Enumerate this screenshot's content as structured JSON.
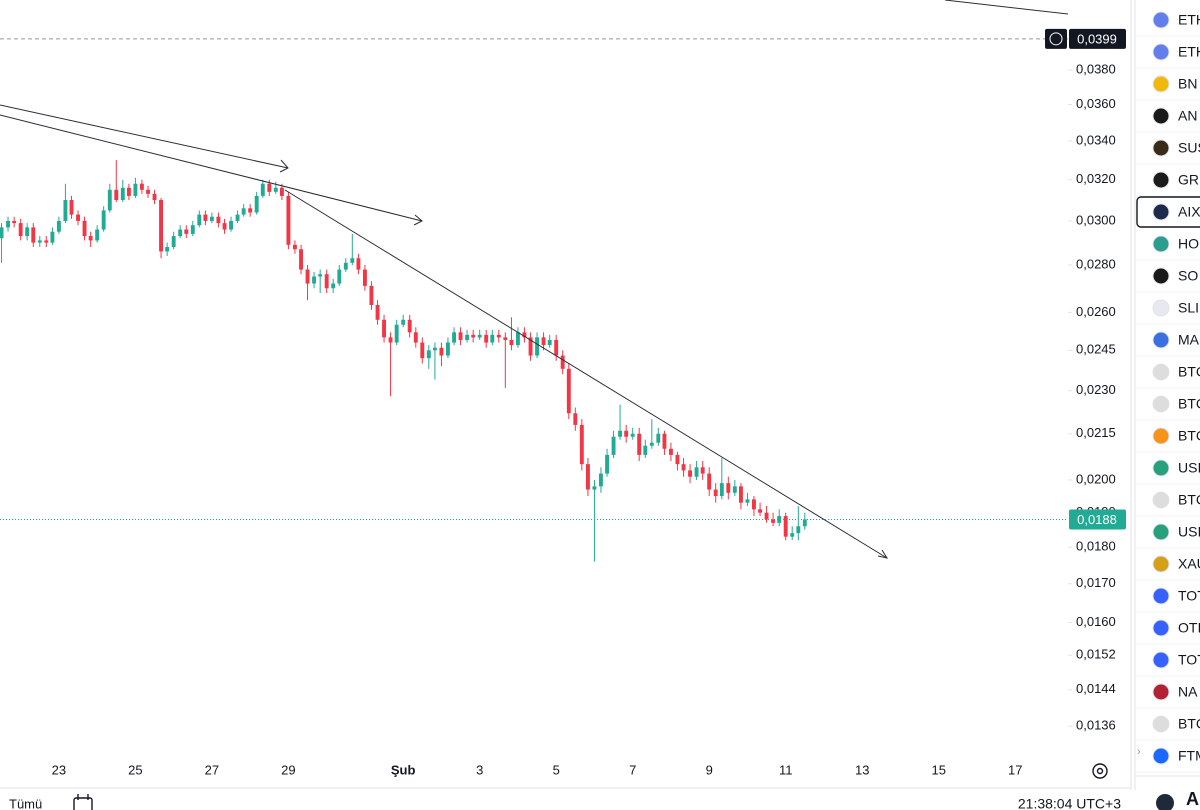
{
  "chart_data": {
    "type": "candlestick",
    "log_scale": true,
    "grid": false,
    "up_color": "#22ab94",
    "down_color": "#f23645",
    "xlim": [
      21.46,
      49.38
    ],
    "xticks": [
      23,
      25,
      27,
      29,
      {
        "value": 32,
        "label": "Şub"
      },
      {
        "value": 34,
        "label": "3"
      },
      {
        "value": 36,
        "label": "5"
      },
      {
        "value": 38,
        "label": "7"
      },
      {
        "value": 40,
        "label": "9"
      },
      {
        "value": 42,
        "label": "11"
      },
      {
        "value": 44,
        "label": "13"
      },
      {
        "value": 46,
        "label": "15"
      },
      {
        "value": 48,
        "label": "17"
      }
    ],
    "ylim": [
      0.0129,
      0.0424
    ],
    "yticks": [
      {
        "value": 0.038,
        "label": "0,0380"
      },
      {
        "value": 0.036,
        "label": "0,0360"
      },
      {
        "value": 0.034,
        "label": "0,0340"
      },
      {
        "value": 0.032,
        "label": "0,0320"
      },
      {
        "value": 0.03,
        "label": "0,0300"
      },
      {
        "value": 0.028,
        "label": "0,0280"
      },
      {
        "value": 0.026,
        "label": "0,0260"
      },
      {
        "value": 0.0245,
        "label": "0,0245"
      },
      {
        "value": 0.023,
        "label": "0,0230"
      },
      {
        "value": 0.0215,
        "label": "0,0215"
      },
      {
        "value": 0.02,
        "label": "0,0200"
      },
      {
        "value": 0.019,
        "label": "0,0190"
      },
      {
        "value": 0.018,
        "label": "0,0180"
      },
      {
        "value": 0.017,
        "label": "0,0170"
      },
      {
        "value": 0.016,
        "label": "0,0160"
      },
      {
        "value": 0.0152,
        "label": "0,0152"
      },
      {
        "value": 0.0144,
        "label": "0,0144"
      },
      {
        "value": 0.0136,
        "label": "0,0136"
      }
    ],
    "alert_line": {
      "value": 0.0399,
      "label": "0,0399"
    },
    "last_price": {
      "value": 0.0188,
      "label": "0,0188"
    },
    "x": [
      21.5,
      21.67,
      21.83,
      22,
      22.17,
      22.33,
      22.5,
      22.67,
      22.83,
      23,
      23.17,
      23.33,
      23.5,
      23.67,
      23.83,
      24,
      24.17,
      24.33,
      24.5,
      24.67,
      24.83,
      25,
      25.17,
      25.33,
      25.5,
      25.67,
      25.83,
      26,
      26.17,
      26.33,
      26.5,
      26.67,
      26.83,
      27,
      27.17,
      27.33,
      27.5,
      27.67,
      27.83,
      28,
      28.17,
      28.33,
      28.5,
      28.67,
      28.83,
      29,
      29.17,
      29.33,
      29.5,
      29.67,
      29.83,
      30,
      30.17,
      30.33,
      30.5,
      30.67,
      30.83,
      31,
      31.17,
      31.33,
      31.5,
      31.67,
      31.83,
      32,
      32.17,
      32.33,
      32.5,
      32.67,
      32.83,
      33,
      33.17,
      33.33,
      33.5,
      33.67,
      33.83,
      34,
      34.17,
      34.33,
      34.5,
      34.67,
      34.83,
      35,
      35.17,
      35.33,
      35.5,
      35.67,
      35.83,
      36,
      36.17,
      36.33,
      36.5,
      36.67,
      36.83,
      37,
      37.17,
      37.33,
      37.5,
      37.67,
      37.83,
      38,
      38.17,
      38.33,
      38.5,
      38.67,
      38.83,
      39,
      39.17,
      39.33,
      39.5,
      39.67,
      39.83,
      40,
      40.17,
      40.33,
      40.5,
      40.67,
      40.83,
      41,
      41.17,
      41.33,
      41.5,
      41.67,
      41.83,
      42,
      42.17,
      42.33,
      42.5
    ],
    "candles": [
      [
        0.0292,
        0.0299,
        0.0281,
        0.0297
      ],
      [
        0.0297,
        0.0302,
        0.0295,
        0.03
      ],
      [
        0.03,
        0.0302,
        0.0297,
        0.0299
      ],
      [
        0.0299,
        0.0301,
        0.0291,
        0.0293
      ],
      [
        0.0293,
        0.0299,
        0.0291,
        0.0297
      ],
      [
        0.0297,
        0.0299,
        0.0288,
        0.029
      ],
      [
        0.029,
        0.0293,
        0.0288,
        0.0291
      ],
      [
        0.0291,
        0.0293,
        0.0288,
        0.029
      ],
      [
        0.029,
        0.0297,
        0.0289,
        0.0295
      ],
      [
        0.0295,
        0.0302,
        0.0294,
        0.03
      ],
      [
        0.03,
        0.0318,
        0.0299,
        0.031
      ],
      [
        0.031,
        0.0312,
        0.0301,
        0.0303
      ],
      [
        0.0303,
        0.0305,
        0.0298,
        0.03
      ],
      [
        0.03,
        0.0302,
        0.0291,
        0.0293
      ],
      [
        0.0293,
        0.0295,
        0.0288,
        0.0291
      ],
      [
        0.0291,
        0.0298,
        0.029,
        0.0296
      ],
      [
        0.0296,
        0.0307,
        0.0295,
        0.0305
      ],
      [
        0.0305,
        0.0318,
        0.0304,
        0.0315
      ],
      [
        0.0315,
        0.033,
        0.0309,
        0.031
      ],
      [
        0.031,
        0.032,
        0.0309,
        0.0316
      ],
      [
        0.0316,
        0.0318,
        0.031,
        0.0312
      ],
      [
        0.0312,
        0.0321,
        0.0311,
        0.0318
      ],
      [
        0.0318,
        0.032,
        0.0313,
        0.0315
      ],
      [
        0.0315,
        0.0317,
        0.0311,
        0.0313
      ],
      [
        0.0313,
        0.0315,
        0.0308,
        0.031
      ],
      [
        0.031,
        0.0311,
        0.0283,
        0.0286
      ],
      [
        0.0286,
        0.029,
        0.0284,
        0.0288
      ],
      [
        0.0288,
        0.0295,
        0.0287,
        0.0293
      ],
      [
        0.0293,
        0.0298,
        0.0292,
        0.0296
      ],
      [
        0.0296,
        0.0298,
        0.0292,
        0.0294
      ],
      [
        0.0294,
        0.03,
        0.0293,
        0.0298
      ],
      [
        0.0298,
        0.0305,
        0.0297,
        0.0303
      ],
      [
        0.0303,
        0.0305,
        0.0298,
        0.03
      ],
      [
        0.03,
        0.0304,
        0.0299,
        0.0302
      ],
      [
        0.0302,
        0.0304,
        0.0297,
        0.0299
      ],
      [
        0.0299,
        0.0301,
        0.0294,
        0.0296
      ],
      [
        0.0296,
        0.0302,
        0.0295,
        0.03
      ],
      [
        0.03,
        0.0305,
        0.0299,
        0.0303
      ],
      [
        0.0303,
        0.0308,
        0.0302,
        0.0306
      ],
      [
        0.0306,
        0.0308,
        0.0302,
        0.0304
      ],
      [
        0.0304,
        0.0314,
        0.0303,
        0.0312
      ],
      [
        0.0312,
        0.032,
        0.0311,
        0.0318
      ],
      [
        0.0318,
        0.032,
        0.0312,
        0.0314
      ],
      [
        0.0314,
        0.0319,
        0.0313,
        0.0316
      ],
      [
        0.0316,
        0.0318,
        0.031,
        0.0312
      ],
      [
        0.0312,
        0.0314,
        0.0287,
        0.0289
      ],
      [
        0.0289,
        0.0291,
        0.0285,
        0.0287
      ],
      [
        0.0287,
        0.0289,
        0.0276,
        0.0278
      ],
      [
        0.0278,
        0.028,
        0.0265,
        0.0272
      ],
      [
        0.0272,
        0.0277,
        0.027,
        0.0275
      ],
      [
        0.0275,
        0.0278,
        0.0268,
        0.0276
      ],
      [
        0.0276,
        0.0278,
        0.0268,
        0.027
      ],
      [
        0.027,
        0.0274,
        0.0268,
        0.0272
      ],
      [
        0.0272,
        0.028,
        0.0271,
        0.0278
      ],
      [
        0.0278,
        0.0283,
        0.0277,
        0.0281
      ],
      [
        0.0281,
        0.0294,
        0.028,
        0.0283
      ],
      [
        0.0283,
        0.0285,
        0.0276,
        0.0278
      ],
      [
        0.0278,
        0.028,
        0.0269,
        0.0271
      ],
      [
        0.0271,
        0.0273,
        0.0261,
        0.0263
      ],
      [
        0.0263,
        0.0265,
        0.0255,
        0.0257
      ],
      [
        0.0257,
        0.0259,
        0.0248,
        0.025
      ],
      [
        0.025,
        0.0252,
        0.0228,
        0.0248
      ],
      [
        0.0248,
        0.0257,
        0.0247,
        0.0255
      ],
      [
        0.0255,
        0.0259,
        0.0254,
        0.0257
      ],
      [
        0.0257,
        0.0259,
        0.025,
        0.0252
      ],
      [
        0.0252,
        0.0254,
        0.0246,
        0.0248
      ],
      [
        0.0248,
        0.025,
        0.024,
        0.0242
      ],
      [
        0.0242,
        0.0247,
        0.0238,
        0.0245
      ],
      [
        0.0245,
        0.0248,
        0.0234,
        0.0246
      ],
      [
        0.0246,
        0.0248,
        0.0239,
        0.0243
      ],
      [
        0.0243,
        0.025,
        0.0242,
        0.0248
      ],
      [
        0.0248,
        0.0254,
        0.0247,
        0.0252
      ],
      [
        0.0252,
        0.0254,
        0.0247,
        0.0249
      ],
      [
        0.0249,
        0.0253,
        0.0248,
        0.0251
      ],
      [
        0.0251,
        0.0253,
        0.0248,
        0.025
      ],
      [
        0.025,
        0.0253,
        0.0249,
        0.0251
      ],
      [
        0.0251,
        0.0253,
        0.0246,
        0.0248
      ],
      [
        0.0248,
        0.0253,
        0.0247,
        0.0251
      ],
      [
        0.0251,
        0.0253,
        0.0248,
        0.025
      ],
      [
        0.025,
        0.0252,
        0.0231,
        0.0249
      ],
      [
        0.0249,
        0.0258,
        0.0245,
        0.0247
      ],
      [
        0.0247,
        0.0254,
        0.0246,
        0.0252
      ],
      [
        0.0252,
        0.0254,
        0.0248,
        0.025
      ],
      [
        0.025,
        0.0252,
        0.0241,
        0.0243
      ],
      [
        0.0243,
        0.0252,
        0.0242,
        0.025
      ],
      [
        0.025,
        0.0252,
        0.0245,
        0.0247
      ],
      [
        0.0247,
        0.0251,
        0.0246,
        0.0249
      ],
      [
        0.0249,
        0.0251,
        0.0241,
        0.0243
      ],
      [
        0.0243,
        0.0245,
        0.0236,
        0.0238
      ],
      [
        0.0238,
        0.024,
        0.022,
        0.0222
      ],
      [
        0.0222,
        0.0224,
        0.0216,
        0.0218
      ],
      [
        0.0218,
        0.022,
        0.0203,
        0.0205
      ],
      [
        0.0205,
        0.0207,
        0.0195,
        0.0197
      ],
      [
        0.0197,
        0.02,
        0.0176,
        0.0198
      ],
      [
        0.0198,
        0.0204,
        0.0196,
        0.0202
      ],
      [
        0.0202,
        0.021,
        0.0201,
        0.0208
      ],
      [
        0.0208,
        0.0216,
        0.0207,
        0.0214
      ],
      [
        0.0214,
        0.0225,
        0.0213,
        0.0216
      ],
      [
        0.0216,
        0.0218,
        0.0212,
        0.0214
      ],
      [
        0.0214,
        0.0217,
        0.0213,
        0.0215
      ],
      [
        0.0215,
        0.0217,
        0.0206,
        0.0208
      ],
      [
        0.0208,
        0.0213,
        0.0207,
        0.0211
      ],
      [
        0.0211,
        0.022,
        0.021,
        0.0212
      ],
      [
        0.0212,
        0.0217,
        0.0211,
        0.0215
      ],
      [
        0.0215,
        0.0216,
        0.0208,
        0.021
      ],
      [
        0.021,
        0.0212,
        0.0206,
        0.0208
      ],
      [
        0.0208,
        0.0209,
        0.0203,
        0.0205
      ],
      [
        0.0205,
        0.0207,
        0.0201,
        0.0203
      ],
      [
        0.0203,
        0.0205,
        0.0199,
        0.0201
      ],
      [
        0.0201,
        0.0206,
        0.02,
        0.0204
      ],
      [
        0.0204,
        0.0206,
        0.02,
        0.0202
      ],
      [
        0.0202,
        0.0204,
        0.0195,
        0.0197
      ],
      [
        0.0197,
        0.0199,
        0.0193,
        0.0195
      ],
      [
        0.0195,
        0.0207,
        0.0194,
        0.0199
      ],
      [
        0.0199,
        0.0201,
        0.0194,
        0.0196
      ],
      [
        0.0196,
        0.02,
        0.0195,
        0.0198
      ],
      [
        0.0198,
        0.0199,
        0.0191,
        0.0193
      ],
      [
        0.0193,
        0.0196,
        0.0192,
        0.0194
      ],
      [
        0.0194,
        0.0195,
        0.0189,
        0.0191
      ],
      [
        0.0191,
        0.0193,
        0.0189,
        0.019
      ],
      [
        0.019,
        0.0192,
        0.0187,
        0.0188
      ],
      [
        0.0188,
        0.019,
        0.0186,
        0.0187
      ],
      [
        0.0187,
        0.0191,
        0.0186,
        0.0189
      ],
      [
        0.0189,
        0.019,
        0.0182,
        0.0183
      ],
      [
        0.0183,
        0.0186,
        0.0182,
        0.0184
      ],
      [
        0.0184,
        0.0192,
        0.0182,
        0.0186
      ],
      [
        0.0186,
        0.019,
        0.0185,
        0.0188
      ]
    ]
  },
  "watchlist": {
    "symbols": [
      "ETH",
      "ETH",
      "BN",
      "AN",
      "SUS",
      "GR",
      "AIX",
      "HO",
      "SO",
      "SLI",
      "MA",
      "BTC",
      "BTC",
      "BTC",
      "USI",
      "BTC",
      "USI",
      "XAU",
      "TOT",
      "OTI",
      "TOT",
      "NA",
      "BTC",
      "FTM"
    ],
    "footer_symbol": "AI"
  },
  "bottom_bar": {
    "range": "Tümü",
    "clock": "21:38:04 UTC+3"
  }
}
